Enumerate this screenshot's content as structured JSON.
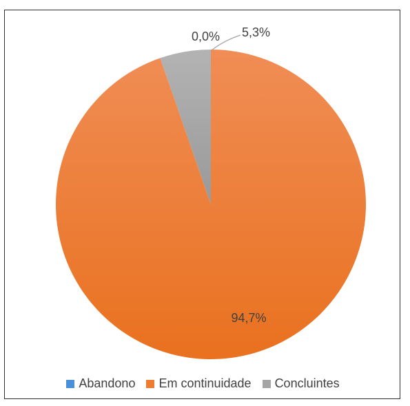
{
  "chart_data": {
    "type": "pie",
    "categories": [
      "Abandono",
      "Em continuidade",
      "Concluintes"
    ],
    "values": [
      0.0,
      94.7,
      5.3
    ],
    "data_labels": [
      "0,0%",
      "94,7%",
      "5,3%"
    ],
    "colors": [
      "#4a90d9",
      "#ee7d31",
      "#a5a5a5"
    ],
    "legend_position": "bottom",
    "title": ""
  }
}
